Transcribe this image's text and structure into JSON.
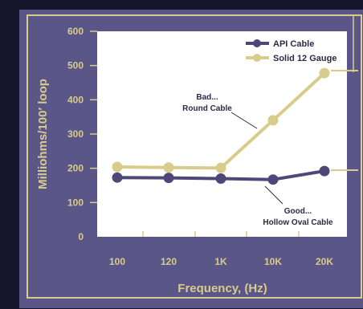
{
  "chart_data": {
    "type": "line",
    "xlabel": "Frequency, (Hz)",
    "ylabel": "Milliohms/100′ loop",
    "categories": [
      "100",
      "120",
      "1K",
      "10K",
      "20K"
    ],
    "ylim": [
      0,
      600
    ],
    "yticks": [
      "0",
      "100",
      "200",
      "300",
      "400",
      "500",
      "600"
    ],
    "grid": false,
    "legend_position": "top-right",
    "series": [
      {
        "name": "API Cable",
        "color": "#4e4778",
        "values": [
          173,
          172,
          170,
          167,
          192
        ]
      },
      {
        "name": "Solid 12 Gauge",
        "color": "#d8cc8c",
        "values": [
          204,
          202,
          201,
          340,
          478
        ]
      }
    ],
    "annotations": [
      {
        "line1": "Bad...",
        "line2": "Round Cable"
      },
      {
        "line1": "Good...",
        "line2": "Hollow Oval Cable"
      }
    ]
  },
  "colors": {
    "background": "#15162a",
    "panel": "#5a5688",
    "panel_frame": "#d8cc8c",
    "plot_area": "#ffffff",
    "axis_text": "#d8cc8c",
    "annotation_text": "#2c2a45"
  }
}
